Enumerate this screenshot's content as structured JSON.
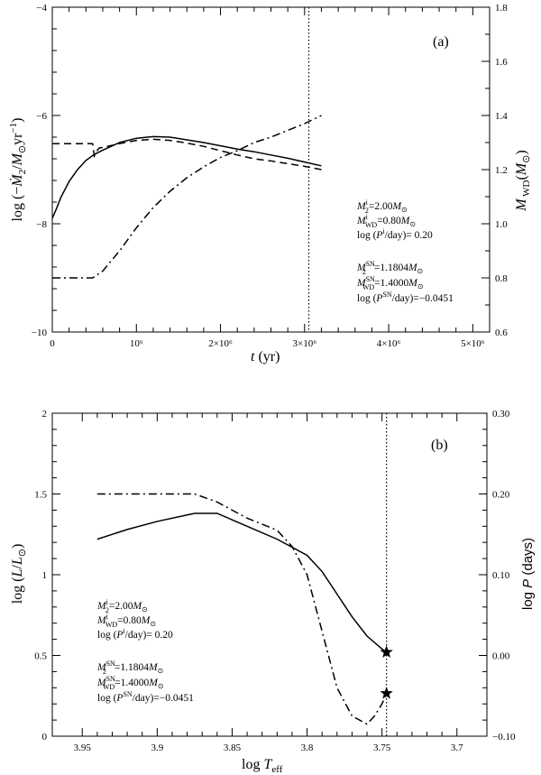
{
  "chart_data": [
    {
      "type": "line",
      "panel_label": "(a)",
      "xlabel": "t (yr)",
      "ylabel": "log (−Ṁ2/M⊙yr⁻¹)",
      "y2label": "M_WD(M⊙)",
      "xlim": [
        0,
        5200000
      ],
      "ylim": [
        -10,
        -4
      ],
      "y2lim": [
        0.6,
        1.8
      ],
      "xticks": [
        0,
        1000000,
        2000000,
        3000000,
        4000000,
        5000000
      ],
      "xtick_labels": [
        "0",
        "10⁶",
        "2×10⁶",
        "3×10⁶",
        "4×10⁶",
        "5×10⁶"
      ],
      "yticks": [
        -10,
        -8,
        -6,
        -4
      ],
      "ytick_labels": [
        "−10",
        "−8",
        "−6",
        "−4"
      ],
      "y2ticks": [
        0.6,
        0.8,
        1.0,
        1.2,
        1.4,
        1.6,
        1.8
      ],
      "y2tick_labels": [
        "0.6",
        "0.8",
        "1.0",
        "1.2",
        "1.4",
        "1.6",
        "1.8"
      ],
      "vline_x": 3050000,
      "series": [
        {
          "name": "mass transfer rate",
          "axis": "left",
          "style": "solid",
          "x": [
            0,
            50000,
            100000,
            200000,
            300000,
            400000,
            500000,
            600000,
            800000,
            1000000,
            1200000,
            1400000,
            1600000,
            1800000,
            2000000,
            2200000,
            2400000,
            2600000,
            2800000,
            3000000,
            3200000
          ],
          "y": [
            -7.9,
            -7.72,
            -7.52,
            -7.22,
            -7.0,
            -6.83,
            -6.72,
            -6.64,
            -6.5,
            -6.42,
            -6.39,
            -6.4,
            -6.45,
            -6.5,
            -6.56,
            -6.62,
            -6.67,
            -6.73,
            -6.79,
            -6.86,
            -6.93
          ]
        },
        {
          "name": "mass transfer rate (alt)",
          "axis": "left",
          "style": "dashed",
          "x": [
            0,
            480000,
            500000,
            520000,
            540000,
            560000,
            600000,
            800000,
            1000000,
            1200000,
            1400000,
            1600000,
            1800000,
            2000000,
            2200000,
            2400000,
            2600000,
            2800000,
            3000000,
            3200000
          ],
          "y": [
            -6.52,
            -6.52,
            -6.75,
            -6.7,
            -6.63,
            -6.6,
            -6.59,
            -6.52,
            -6.46,
            -6.44,
            -6.46,
            -6.51,
            -6.57,
            -6.65,
            -6.73,
            -6.8,
            -6.84,
            -6.89,
            -6.94,
            -7.0
          ]
        },
        {
          "name": "white dwarf mass",
          "axis": "right",
          "style": "dashdot",
          "x": [
            0,
            480000,
            600000,
            800000,
            1000000,
            1200000,
            1400000,
            1600000,
            1800000,
            2000000,
            2200000,
            2400000,
            2600000,
            2800000,
            3000000,
            3200000
          ],
          "y": [
            0.8,
            0.8,
            0.825,
            0.9,
            0.985,
            1.06,
            1.12,
            1.17,
            1.21,
            1.245,
            1.27,
            1.3,
            1.32,
            1.345,
            1.37,
            1.4
          ]
        }
      ],
      "annotations": {
        "initial": [
          "M2^i=2.00M⊙",
          "MWD^i=0.80M⊙",
          "log (P^i/day)=  0.20"
        ],
        "sn": [
          "M2^SN=1.1804M⊙",
          "MWD^SN=1.4000M⊙",
          "log (P^SN/day)=−0.0451"
        ]
      }
    },
    {
      "type": "line",
      "panel_label": "(b)",
      "xlabel": "log T_eff",
      "ylabel": "log (L/L⊙)",
      "y2label": "log P (days)",
      "xlim": [
        3.97,
        3.68
      ],
      "ylim": [
        0,
        2
      ],
      "y2lim": [
        -0.1,
        0.3
      ],
      "xticks": [
        3.95,
        3.9,
        3.85,
        3.8,
        3.75,
        3.7
      ],
      "xtick_labels": [
        "3.95",
        "3.9",
        "3.85",
        "3.8",
        "3.75",
        "3.7"
      ],
      "yticks": [
        0,
        0.5,
        1,
        1.5,
        2
      ],
      "ytick_labels": [
        "0",
        "0.5",
        "1",
        "1.5",
        "2"
      ],
      "y2ticks": [
        -0.1,
        0.0,
        0.1,
        0.2,
        0.3
      ],
      "y2tick_labels": [
        "−0.10",
        "0.00",
        "0.10",
        "0.20",
        "0.30"
      ],
      "vline_x": 3.747,
      "series": [
        {
          "name": "HR track",
          "axis": "left",
          "style": "solid",
          "x": [
            3.94,
            3.92,
            3.9,
            3.88,
            3.875,
            3.86,
            3.84,
            3.82,
            3.8,
            3.79,
            3.78,
            3.77,
            3.76,
            3.75,
            3.747
          ],
          "y": [
            1.22,
            1.28,
            1.33,
            1.37,
            1.38,
            1.38,
            1.3,
            1.22,
            1.12,
            1.02,
            0.88,
            0.74,
            0.62,
            0.54,
            0.52
          ]
        },
        {
          "name": "orbital period",
          "axis": "right",
          "style": "dashdot",
          "x": [
            3.94,
            3.9,
            3.875,
            3.86,
            3.84,
            3.82,
            3.81,
            3.8,
            3.79,
            3.78,
            3.77,
            3.76,
            3.755,
            3.75,
            3.747
          ],
          "y": [
            0.2,
            0.2,
            0.2,
            0.19,
            0.17,
            0.155,
            0.135,
            0.1,
            0.03,
            -0.04,
            -0.075,
            -0.085,
            -0.075,
            -0.06,
            -0.047
          ]
        }
      ],
      "markers": [
        {
          "symbol": "star",
          "x": 3.747,
          "y": 0.52,
          "axis": "left"
        },
        {
          "symbol": "star",
          "x": 3.747,
          "y": -0.047,
          "axis": "right"
        }
      ],
      "annotations": {
        "initial": [
          "M2^i=2.00M⊙",
          "MWD^i=0.80M⊙",
          "log (P^i/day)=  0.20"
        ],
        "sn": [
          "M2^SN=1.1804M⊙",
          "MWD^SN=1.4000M⊙",
          "log (P^SN/day)=−0.0451"
        ]
      }
    }
  ]
}
